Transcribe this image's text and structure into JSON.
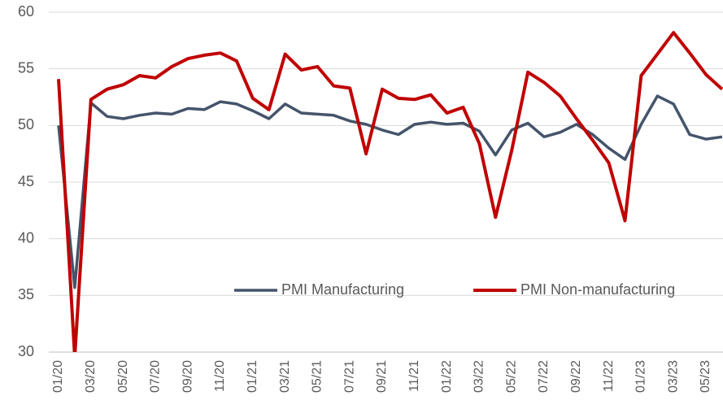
{
  "chart_data": {
    "type": "line",
    "categories": [
      "01/20",
      null,
      "03/20",
      null,
      "05/20",
      null,
      "07/20",
      null,
      "09/20",
      null,
      "11/20",
      null,
      "01/21",
      null,
      "03/21",
      null,
      "05/21",
      null,
      "07/21",
      null,
      "09/21",
      null,
      "11/21",
      null,
      "01/22",
      null,
      "03/22",
      null,
      "05/22",
      null,
      "07/22",
      null,
      "09/22",
      null,
      "11/22",
      null,
      "01/23",
      null,
      "03/23",
      null,
      "05/23",
      null
    ],
    "series": [
      {
        "name": "PMI Manufacturing",
        "color": "#44546a",
        "values": [
          50.0,
          35.7,
          52.0,
          50.8,
          50.6,
          50.9,
          51.1,
          51.0,
          51.5,
          51.4,
          52.1,
          51.9,
          51.3,
          50.6,
          51.9,
          51.1,
          51.0,
          50.9,
          50.4,
          50.1,
          49.6,
          49.2,
          50.1,
          50.3,
          50.1,
          50.2,
          49.5,
          47.4,
          49.6,
          50.2,
          49.0,
          49.4,
          50.1,
          49.2,
          48.0,
          47.0,
          50.1,
          52.6,
          51.9,
          49.2,
          48.8,
          49.0
        ]
      },
      {
        "name": "PMI Non-manufacturing",
        "color": "#c00000",
        "values": [
          54.1,
          29.6,
          52.3,
          53.2,
          53.6,
          54.4,
          54.2,
          55.2,
          55.9,
          56.2,
          56.4,
          55.7,
          52.4,
          51.4,
          56.3,
          54.9,
          55.2,
          53.5,
          53.3,
          47.5,
          53.2,
          52.4,
          52.3,
          52.7,
          51.1,
          51.6,
          48.4,
          41.9,
          47.8,
          54.7,
          53.8,
          52.6,
          50.6,
          48.7,
          46.7,
          41.6,
          54.4,
          56.3,
          58.2,
          56.4,
          54.5,
          53.2
        ]
      }
    ],
    "ylim": [
      30,
      60
    ],
    "yticks": [
      30,
      35,
      40,
      45,
      50,
      55,
      60
    ],
    "grid": true
  }
}
